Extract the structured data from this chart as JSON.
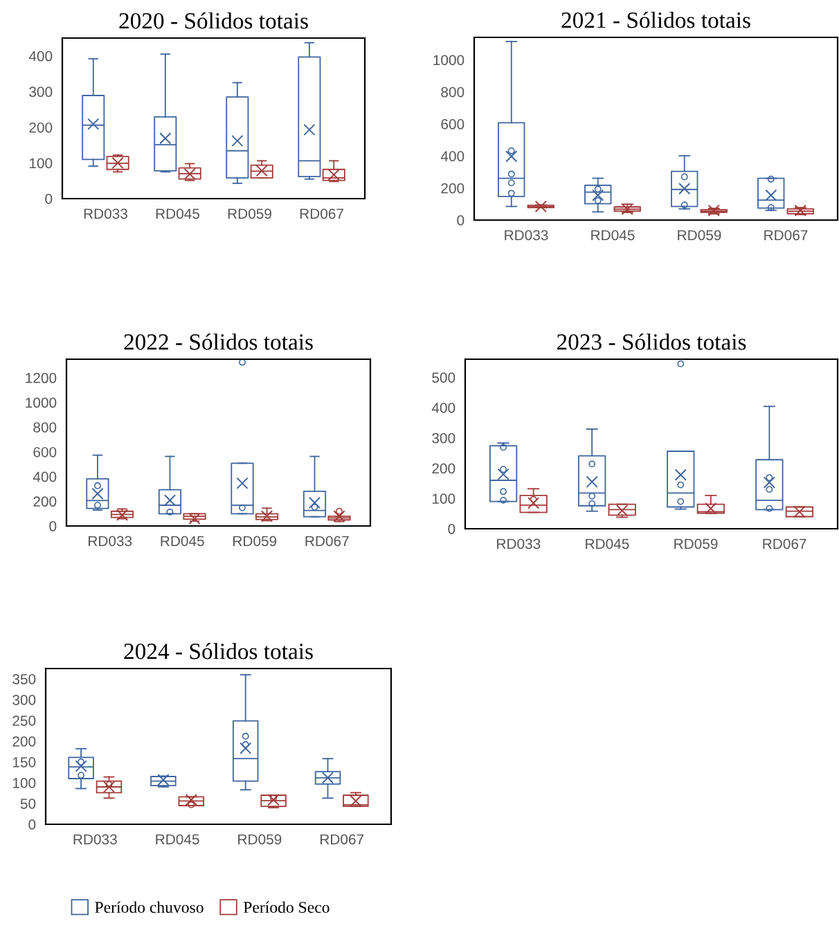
{
  "chart_data": [
    {
      "type": "box",
      "title": "2020 - Sólidos totais",
      "categories": [
        "RD033",
        "RD045",
        "RD059",
        "RD067"
      ],
      "ylim": [
        0,
        450
      ],
      "yticks": [
        0,
        100,
        200,
        300,
        400
      ],
      "legend": "bottom",
      "series": [
        {
          "name": "Período chuvoso",
          "color": "#3d65a0",
          "boxes": [
            {
              "low": 91,
              "q1": 110,
              "median": 206,
              "q3": 289,
              "high": 392,
              "mean": 209
            },
            {
              "low": 75,
              "q1": 78,
              "median": 151,
              "q3": 229,
              "high": 405,
              "mean": 169
            },
            {
              "low": 43,
              "q1": 58,
              "median": 134,
              "q3": 285,
              "high": 325,
              "mean": 162
            },
            {
              "low": 55,
              "q1": 62,
              "median": 106,
              "q3": 397,
              "high": 437,
              "mean": 193
            }
          ]
        },
        {
          "name": "Período Seco",
          "color": "#a33b3a",
          "boxes": [
            {
              "low": 75,
              "q1": 82,
              "median": 99,
              "q3": 118,
              "high": 122,
              "mean": 100
            },
            {
              "low": 51,
              "q1": 55,
              "median": 70,
              "q3": 86,
              "high": 98,
              "mean": 69
            },
            {
              "low": 58,
              "q1": 58,
              "median": 77,
              "q3": 94,
              "high": 106,
              "mean": 78
            },
            {
              "low": 48,
              "q1": 51,
              "median": 58,
              "q3": 82,
              "high": 106,
              "mean": 67
            }
          ]
        }
      ]
    },
    {
      "type": "box",
      "title": "2021 - Sólidos totais",
      "categories": [
        "RD033",
        "RD045",
        "RD059",
        "RD067"
      ],
      "ylim": [
        0,
        1140
      ],
      "yticks": [
        0,
        200,
        400,
        600,
        800,
        1000
      ],
      "series": [
        {
          "color": "#3d65a0",
          "boxes": [
            {
              "low": 85,
              "q1": 147,
              "median": 261,
              "q3": 607,
              "high": 1114,
              "mean": 398,
              "outliers": [
                432,
                287,
                232,
                167
              ]
            },
            {
              "low": 51,
              "q1": 102,
              "median": 174,
              "q3": 217,
              "high": 261,
              "mean": 155,
              "outliers": [
                193,
                121
              ]
            },
            {
              "low": 70,
              "q1": 85,
              "median": 191,
              "q3": 304,
              "high": 401,
              "mean": 196,
              "outliers": [
                270,
                94
              ]
            },
            {
              "low": 61,
              "q1": 75,
              "median": 125,
              "q3": 261,
              "high": 261,
              "mean": 155,
              "outliers": [
                256,
                78
              ]
            }
          ]
        },
        {
          "color": "#a33b3a",
          "boxes": [
            {
              "low": 78,
              "q1": 78,
              "median": 85,
              "q3": 92,
              "high": 94,
              "mean": 85
            },
            {
              "low": 48,
              "q1": 56,
              "median": 68,
              "q3": 82,
              "high": 99,
              "mean": 68
            },
            {
              "low": 39,
              "q1": 48,
              "median": 55,
              "q3": 65,
              "high": 73,
              "mean": 60
            },
            {
              "low": 34,
              "q1": 39,
              "median": 56,
              "q3": 70,
              "high": 78,
              "mean": 60
            }
          ]
        }
      ]
    },
    {
      "type": "box",
      "title": "2022 - Sólidos totais",
      "categories": [
        "RD033",
        "RD045",
        "RD059",
        "RD067"
      ],
      "ylim": [
        0,
        1350
      ],
      "yticks": [
        0,
        200,
        400,
        600,
        800,
        1000,
        1200
      ],
      "series": [
        {
          "color": "#3d65a0",
          "boxes": [
            {
              "low": 129,
              "q1": 142,
              "median": 206,
              "q3": 382,
              "high": 573,
              "mean": 261,
              "outliers": [
                326,
                168
              ]
            },
            {
              "low": 99,
              "q1": 99,
              "median": 168,
              "q3": 293,
              "high": 563,
              "mean": 208,
              "outliers": [
                113
              ]
            },
            {
              "low": 99,
              "q1": 99,
              "median": 168,
              "q3": 508,
              "high": 508,
              "mean": 346,
              "outliers": [
                1325,
                148
              ]
            },
            {
              "low": 75,
              "q1": 75,
              "median": 125,
              "q3": 281,
              "high": 563,
              "mean": 188,
              "outliers": [
                152
              ]
            }
          ]
        },
        {
          "color": "#a33b3a",
          "boxes": [
            {
              "low": 59,
              "q1": 69,
              "median": 93,
              "q3": 119,
              "high": 138,
              "mean": 89
            },
            {
              "low": 40,
              "q1": 55,
              "median": 79,
              "q3": 99,
              "high": 99,
              "mean": 59
            },
            {
              "low": 43,
              "q1": 53,
              "median": 73,
              "q3": 99,
              "high": 144,
              "mean": 79
            },
            {
              "low": 36,
              "q1": 49,
              "median": 65,
              "q3": 79,
              "high": 79,
              "mean": 79,
              "outliers": [
                119
              ]
            }
          ]
        }
      ]
    },
    {
      "type": "box",
      "title": "2023 - Sólidos totais",
      "categories": [
        "RD033",
        "RD045",
        "RD059",
        "RD067"
      ],
      "ylim": [
        0,
        560
      ],
      "yticks": [
        0,
        100,
        200,
        300,
        400,
        500
      ],
      "series": [
        {
          "color": "#3d65a0",
          "boxes": [
            {
              "low": 90,
              "q1": 90,
              "median": 160,
              "q3": 274,
              "high": 283,
              "mean": 180,
              "outliers": [
                269,
                196,
                123,
                94
              ]
            },
            {
              "low": 58,
              "q1": 76,
              "median": 118,
              "q3": 241,
              "high": 329,
              "mean": 155,
              "outliers": [
                214,
                108,
                83
              ]
            },
            {
              "low": 65,
              "q1": 72,
              "median": 118,
              "q3": 256,
              "high": 256,
              "mean": 178,
              "outliers": [
                545,
                145,
                90
              ]
            },
            {
              "low": 63,
              "q1": 63,
              "median": 94,
              "q3": 228,
              "high": 404,
              "mean": 153,
              "outliers": [
                169,
                130,
                67
              ]
            }
          ]
        },
        {
          "color": "#a33b3a",
          "boxes": [
            {
              "low": 54,
              "q1": 54,
              "median": 78,
              "q3": 110,
              "high": 132,
              "mean": 85,
              "outliers": [
                97
              ]
            },
            {
              "low": 38,
              "q1": 45,
              "median": 63,
              "q3": 81,
              "high": 81,
              "mean": 60
            },
            {
              "low": 51,
              "q1": 51,
              "median": 56,
              "q3": 81,
              "high": 110,
              "mean": 67
            },
            {
              "low": 40,
              "q1": 40,
              "median": 58,
              "q3": 72,
              "high": 72,
              "mean": 56
            }
          ]
        }
      ]
    },
    {
      "type": "box",
      "title": "2024 - Sólidos totais",
      "categories": [
        "RD033",
        "RD045",
        "RD059",
        "RD067"
      ],
      "ylim": [
        0,
        375
      ],
      "yticks": [
        0,
        50,
        100,
        150,
        200,
        250,
        300,
        350
      ],
      "series": [
        {
          "color": "#3d65a0",
          "boxes": [
            {
              "low": 86,
              "q1": 110,
              "median": 138,
              "q3": 161,
              "high": 182,
              "mean": 140,
              "outliers": [
                150,
                118
              ]
            },
            {
              "low": 90,
              "q1": 93,
              "median": 104,
              "q3": 115,
              "high": 116,
              "mean": 107
            },
            {
              "low": 83,
              "q1": 104,
              "median": 158,
              "q3": 249,
              "high": 360,
              "mean": 183,
              "outliers": [
                212,
                192
              ]
            },
            {
              "low": 63,
              "q1": 97,
              "median": 112,
              "q3": 127,
              "high": 158,
              "mean": 112
            }
          ]
        },
        {
          "color": "#a33b3a",
          "boxes": [
            {
              "low": 63,
              "q1": 76,
              "median": 90,
              "q3": 104,
              "high": 114,
              "mean": 90,
              "outliers": [
                96
              ]
            },
            {
              "low": 45,
              "q1": 45,
              "median": 56,
              "q3": 66,
              "high": 66,
              "mean": 59,
              "outliers": [
                47
              ]
            },
            {
              "low": 40,
              "q1": 43,
              "median": 57,
              "q3": 70,
              "high": 70,
              "mean": 59,
              "outliers": [
                63
              ]
            },
            {
              "low": 43,
              "q1": 43,
              "median": 47,
              "q3": 70,
              "high": 76,
              "mean": 56
            }
          ]
        }
      ]
    }
  ]
}
